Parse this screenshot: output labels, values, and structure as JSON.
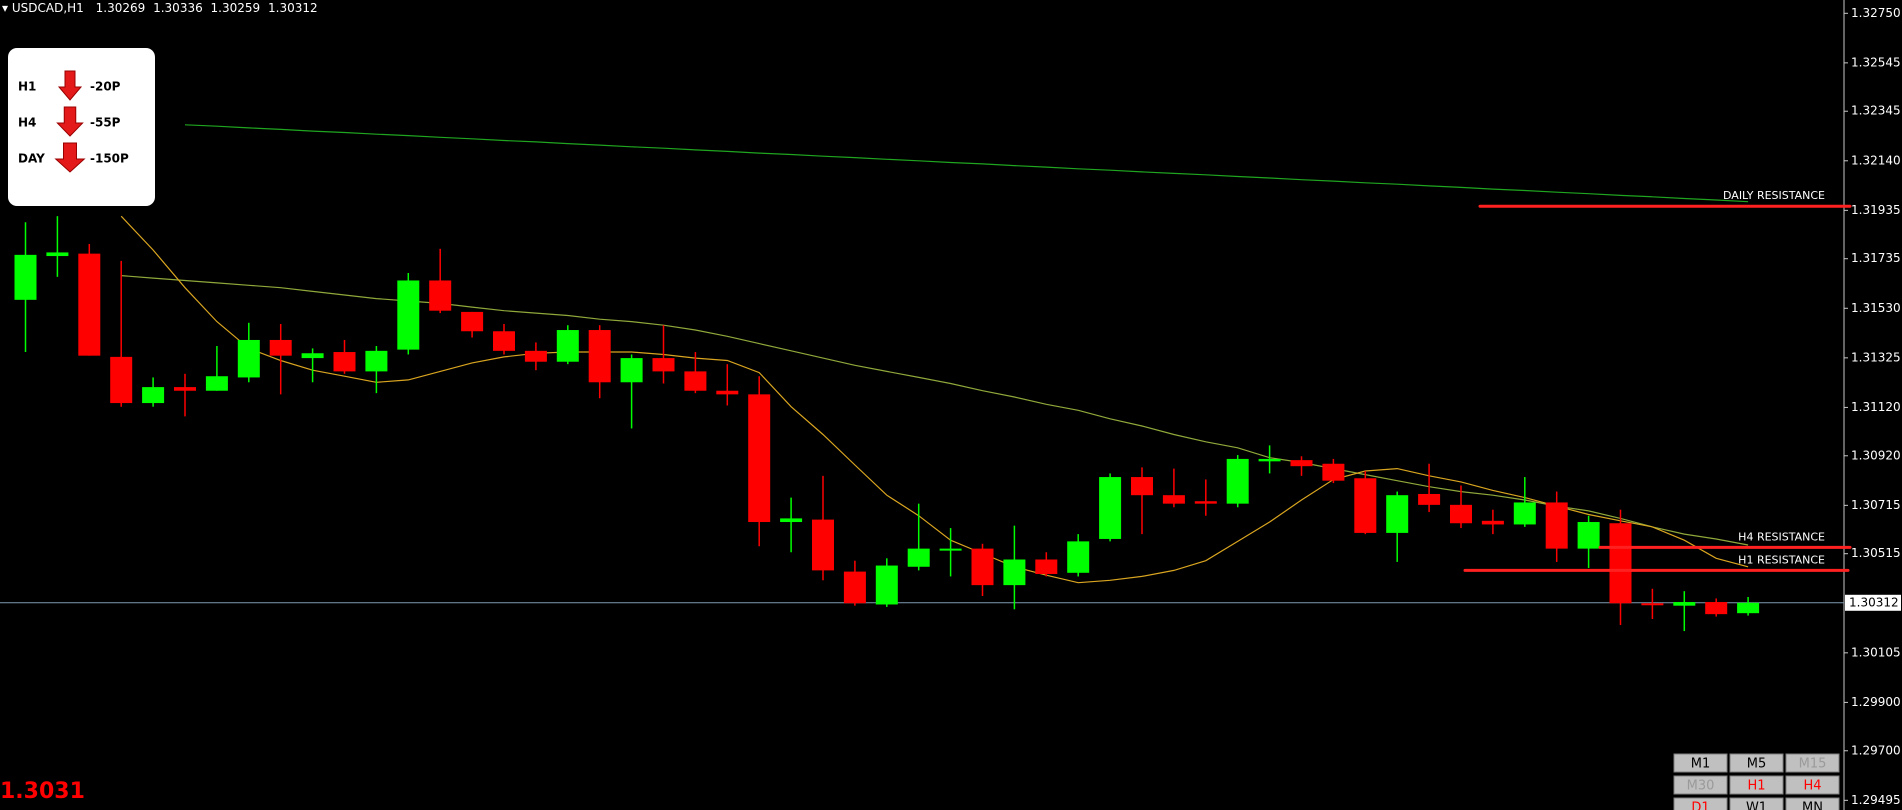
{
  "header": {
    "symbol": "USDCAD,H1"
  },
  "signals": [
    {
      "timeframe": "H1",
      "pips": "-20P"
    },
    {
      "timeframe": "H4",
      "pips": "-55P"
    },
    {
      "timeframe": "DAY",
      "pips": "-150P"
    }
  ],
  "price_display": "1.3031",
  "timeframes": [
    {
      "label": "M1",
      "color": "#000000"
    },
    {
      "label": "M5",
      "color": "#000000"
    },
    {
      "label": "M15",
      "color": "#9a9a9a"
    },
    {
      "label": "M30",
      "color": "#9a9a9a"
    },
    {
      "label": "H1",
      "color": "#ff0000"
    },
    {
      "label": "H4",
      "color": "#ff0000"
    },
    {
      "label": "D1",
      "color": "#ff0000"
    },
    {
      "label": "W1",
      "color": "#000000"
    },
    {
      "label": "MN",
      "color": "#000000"
    }
  ],
  "chart_data": {
    "type": "candlestick",
    "up_color": "#00ff00",
    "down_color": "#ff0000",
    "current_price_color": "#7f9bb0",
    "ylim": [
      1.29455,
      1.32805
    ],
    "yticks": [
      {
        "value": 1.3275,
        "label": "1.32750"
      },
      1.32545,
      1.32345,
      {
        "value": 1.3214,
        "label": "1.32140"
      },
      1.31935,
      1.31735,
      {
        "value": 1.3153,
        "label": "1.31530"
      },
      1.31325,
      {
        "value": 1.3112,
        "label": "1.31120"
      },
      {
        "value": 1.3092,
        "label": "1.30920"
      },
      1.30715,
      1.30515,
      1.30105,
      {
        "value": 1.299,
        "label": "1.29900"
      },
      {
        "value": 1.297,
        "label": "1.29700"
      },
      1.29495
    ],
    "open": [
      1.31565,
      1.31746,
      1.31756,
      1.31329,
      1.31138,
      1.31204,
      1.31189,
      1.31244,
      1.31399,
      1.31324,
      1.31349,
      1.31269,
      1.31359,
      1.31645,
      1.31515,
      1.31435,
      1.31354,
      1.31309,
      1.3144,
      1.31224,
      1.31324,
      1.31269,
      1.31189,
      1.31174,
      1.30646,
      1.30656,
      1.30441,
      1.30305,
      1.30461,
      1.30531,
      1.30536,
      1.30385,
      1.30491,
      1.30436,
      1.30576,
      1.30832,
      1.30757,
      1.30732,
      1.30722,
      1.30897,
      1.30902,
      1.30887,
      1.30827,
      1.30601,
      1.30762,
      1.30717,
      1.30651,
      1.30636,
      1.30727,
      1.30536,
      1.30641,
      1.3031,
      1.303,
      1.30315,
      1.30269
    ],
    "high": [
      1.31886,
      1.31911,
      1.31796,
      1.31726,
      1.31244,
      1.31259,
      1.31374,
      1.3147,
      1.31465,
      1.31364,
      1.31399,
      1.31374,
      1.31676,
      1.31776,
      1.31515,
      1.31465,
      1.31389,
      1.3146,
      1.3146,
      1.31339,
      1.3146,
      1.31349,
      1.31299,
      1.31249,
      1.30747,
      1.30837,
      1.30486,
      1.30496,
      1.30722,
      1.30621,
      1.30556,
      1.30631,
      1.30521,
      1.30596,
      1.30847,
      1.30872,
      1.30867,
      1.30822,
      1.30923,
      1.30963,
      1.30918,
      1.30907,
      1.30857,
      1.30772,
      1.30887,
      1.30797,
      1.30697,
      1.30832,
      1.30772,
      1.30672,
      1.30697,
      1.3037,
      1.3036,
      1.3033,
      1.30336
    ],
    "low": [
      1.31349,
      1.3166,
      1.31334,
      1.31123,
      1.31123,
      1.31083,
      1.31189,
      1.31224,
      1.31174,
      1.31224,
      1.31259,
      1.31179,
      1.31339,
      1.3151,
      1.31409,
      1.31339,
      1.31274,
      1.31299,
      1.31158,
      1.31033,
      1.31219,
      1.31179,
      1.31128,
      1.30546,
      1.30521,
      1.30405,
      1.303,
      1.30295,
      1.30446,
      1.30421,
      1.3034,
      1.30285,
      1.30421,
      1.30421,
      1.30566,
      1.30596,
      1.30707,
      1.30672,
      1.30707,
      1.30847,
      1.30837,
      1.30807,
      1.30596,
      1.30481,
      1.30687,
      1.30621,
      1.30596,
      1.30626,
      1.30481,
      1.30456,
      1.3022,
      1.30245,
      1.30195,
      1.30255,
      1.30259
    ],
    "close": [
      1.31751,
      1.31761,
      1.31334,
      1.31138,
      1.31204,
      1.31189,
      1.31249,
      1.31399,
      1.31334,
      1.31344,
      1.31269,
      1.31354,
      1.31645,
      1.3152,
      1.31435,
      1.31354,
      1.31309,
      1.3144,
      1.31224,
      1.31324,
      1.31269,
      1.31189,
      1.31174,
      1.30646,
      1.30661,
      1.30446,
      1.3031,
      1.30466,
      1.30536,
      1.30536,
      1.30385,
      1.30491,
      1.30431,
      1.30566,
      1.30832,
      1.30757,
      1.30722,
      1.30722,
      1.30907,
      1.30907,
      1.30877,
      1.30817,
      1.30601,
      1.30757,
      1.30717,
      1.30641,
      1.30636,
      1.30727,
      1.30536,
      1.30646,
      1.3031,
      1.30305,
      1.30315,
      1.30265,
      1.30312
    ],
    "indicators": [
      {
        "color": "#1fa51f",
        "values": [
          null,
          null,
          null,
          null,
          null,
          1.32289,
          1.32283,
          1.32276,
          1.3227,
          1.32263,
          1.32257,
          1.3225,
          1.32244,
          1.32237,
          1.32231,
          1.32224,
          1.32218,
          1.32211,
          1.32205,
          1.32198,
          1.32192,
          1.32185,
          1.32179,
          1.32172,
          1.32166,
          1.32159,
          1.32153,
          1.32146,
          1.3214,
          1.32133,
          1.32127,
          1.3212,
          1.32114,
          1.32107,
          1.32101,
          1.32094,
          1.32088,
          1.32082,
          1.32075,
          1.32069,
          1.32062,
          1.32056,
          1.32049,
          1.32043,
          1.32036,
          1.3203,
          1.32023,
          1.32017,
          1.3201,
          1.32004,
          1.31997,
          1.31991,
          1.31984,
          1.31978,
          1.31971
        ]
      },
      {
        "color": "#8fa83a",
        "values": [
          null,
          null,
          null,
          1.31665,
          1.31655,
          1.31645,
          1.31635,
          1.31625,
          1.31615,
          1.316,
          1.31585,
          1.3157,
          1.3156,
          1.3155,
          1.31535,
          1.3152,
          1.3151,
          1.315,
          1.31485,
          1.31475,
          1.3146,
          1.3144,
          1.31414,
          1.31384,
          1.31354,
          1.31324,
          1.31294,
          1.31269,
          1.31244,
          1.31219,
          1.31189,
          1.31163,
          1.31133,
          1.31108,
          1.31073,
          1.31043,
          1.31008,
          1.30978,
          1.30953,
          1.30912,
          1.30892,
          1.30867,
          1.30842,
          1.30817,
          1.30792,
          1.30772,
          1.30757,
          1.30737,
          1.30712,
          1.30692,
          1.30661,
          1.30626,
          1.30596,
          1.30576,
          1.30551
        ]
      },
      {
        "color": "#d9a520",
        "values": [
          null,
          null,
          null,
          1.31911,
          1.31771,
          1.31615,
          1.31475,
          1.31364,
          1.31314,
          1.31274,
          1.31249,
          1.31224,
          1.31234,
          1.31269,
          1.31304,
          1.31329,
          1.31344,
          1.31349,
          1.31349,
          1.31349,
          1.31339,
          1.31324,
          1.31314,
          1.31264,
          1.31123,
          1.31008,
          1.30882,
          1.30757,
          1.30672,
          1.30571,
          1.30516,
          1.30461,
          1.30426,
          1.30395,
          1.30405,
          1.30421,
          1.30446,
          1.30486,
          1.30566,
          1.30646,
          1.30737,
          1.30822,
          1.30857,
          1.30867,
          1.30837,
          1.30812,
          1.30777,
          1.30747,
          1.30712,
          1.30677,
          1.30651,
          1.30626,
          1.30571,
          1.30496,
          1.30461
        ]
      }
    ],
    "annotations": [
      {
        "text": "DAILY RESISTANCE",
        "level": 1.31952,
        "color": "#ff2020"
      },
      {
        "text": "H4 RESISTANCE",
        "level": 1.30541,
        "color": "#ff2020"
      },
      {
        "text": "H1 RESISTANCE",
        "level": 1.30446,
        "color": "#ff2020"
      }
    ]
  }
}
